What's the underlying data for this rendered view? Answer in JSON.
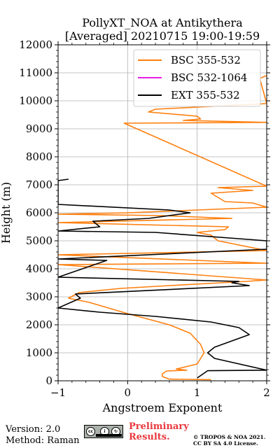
{
  "chart_data": {
    "type": "line",
    "title_line1": "PollyXT_NOA at Antikythera",
    "title_line2": "[Averaged] 20210715 19:00-19:59",
    "xlabel": "Angstroem Exponent",
    "ylabel": "Height (m)",
    "xlim": [
      -1,
      2
    ],
    "ylim": [
      0,
      12000
    ],
    "xticks": [
      "−1",
      "0",
      "1",
      "2"
    ],
    "yticks": [
      "0",
      "1000",
      "2000",
      "3000",
      "4000",
      "5000",
      "6000",
      "7000",
      "8000",
      "9000",
      "10000",
      "11000",
      "12000"
    ],
    "grid": true,
    "legend_position": "top-right",
    "series": [
      {
        "name": "BSC 355-532",
        "color": "#ff7f0e",
        "points": [
          [
            1.2,
            40
          ],
          [
            0.6,
            60
          ],
          [
            0.5,
            150
          ],
          [
            0.5,
            250
          ],
          [
            0.56,
            350
          ],
          [
            0.85,
            380
          ],
          [
            0.7,
            420
          ],
          [
            1.0,
            600
          ],
          [
            1.05,
            800
          ],
          [
            1.1,
            1000
          ],
          [
            1.05,
            1300
          ],
          [
            0.9,
            1700
          ],
          [
            0.6,
            2000
          ],
          [
            0.3,
            2200
          ],
          [
            0.0,
            2400
          ],
          [
            -0.55,
            2800
          ],
          [
            -0.85,
            2950
          ],
          [
            -0.7,
            3150
          ],
          [
            -0.1,
            3300
          ],
          [
            0.6,
            3400
          ],
          [
            1.7,
            3550
          ],
          [
            2.0,
            3600
          ],
          [
            -1.0,
            4150
          ],
          [
            2.0,
            4200
          ],
          [
            -1.0,
            4500
          ],
          [
            2.0,
            4650
          ],
          [
            1.4,
            4950
          ],
          [
            1.3,
            5000
          ],
          [
            1.2,
            5200
          ],
          [
            1.0,
            5300
          ],
          [
            1.4,
            5400
          ],
          [
            1.45,
            5500
          ],
          [
            -1.0,
            5650
          ],
          [
            1.5,
            5800
          ],
          [
            0.5,
            5900
          ],
          [
            -1.0,
            5950
          ],
          [
            0.0,
            6000
          ],
          [
            2.0,
            6200
          ],
          [
            1.8,
            6350
          ],
          [
            1.4,
            6400
          ],
          [
            1.2,
            6700
          ],
          [
            1.8,
            6800
          ],
          [
            1.3,
            6900
          ],
          [
            2.0,
            6950
          ],
          [
            -0.05,
            9200
          ],
          [
            2.0,
            9230
          ],
          [
            0.8,
            9300
          ],
          [
            1.05,
            9350
          ],
          [
            1.0,
            9450
          ],
          [
            0.3,
            9600
          ],
          [
            0.4,
            9700
          ],
          [
            2.0,
            9900
          ],
          [
            1.9,
            10800
          ],
          [
            2.0,
            10900
          ]
        ]
      },
      {
        "name": "BSC 532-1064",
        "color": "#e51ee5",
        "points": []
      },
      {
        "name": "EXT 355-532",
        "color": "#000000",
        "points": [
          [
            1.0,
            100
          ],
          [
            1.15,
            360
          ],
          [
            2.0,
            380
          ],
          [
            1.25,
            800
          ],
          [
            1.15,
            1000
          ],
          [
            1.25,
            1200
          ],
          [
            1.75,
            1650
          ],
          [
            1.6,
            1900
          ],
          [
            1.2,
            2100
          ],
          [
            0.4,
            2300
          ],
          [
            -0.4,
            2450
          ],
          [
            -1.0,
            2600
          ],
          [
            -0.68,
            2950
          ],
          [
            -0.75,
            3100
          ],
          [
            1.75,
            3400
          ],
          [
            1.5,
            3500
          ],
          [
            1.6,
            3550
          ],
          [
            -1.0,
            3700
          ],
          [
            -0.3,
            4300
          ],
          [
            -1.0,
            4350
          ],
          [
            2.0,
            4700
          ],
          [
            2.0,
            5000
          ],
          [
            0.4,
            5300
          ],
          [
            -1.0,
            5350
          ],
          [
            -0.4,
            5500
          ],
          [
            -0.5,
            5700
          ],
          [
            0.3,
            5800
          ],
          [
            0.9,
            6000
          ],
          [
            0.6,
            6100
          ],
          [
            -1.0,
            6300
          ],
          [
            -1.0,
            7150
          ],
          [
            -0.85,
            7200
          ]
        ]
      }
    ]
  },
  "footer": {
    "version": "Version: 2.0",
    "method": "Method: Raman",
    "preliminary_line1": "Preliminary",
    "preliminary_line2": "Results.",
    "copyright_line1": "© TROPOS & NOA 2021.",
    "copyright_line2": "CC BY SA 4.0 License.",
    "cc_icon": "creative-commons-by-sa-icon"
  }
}
